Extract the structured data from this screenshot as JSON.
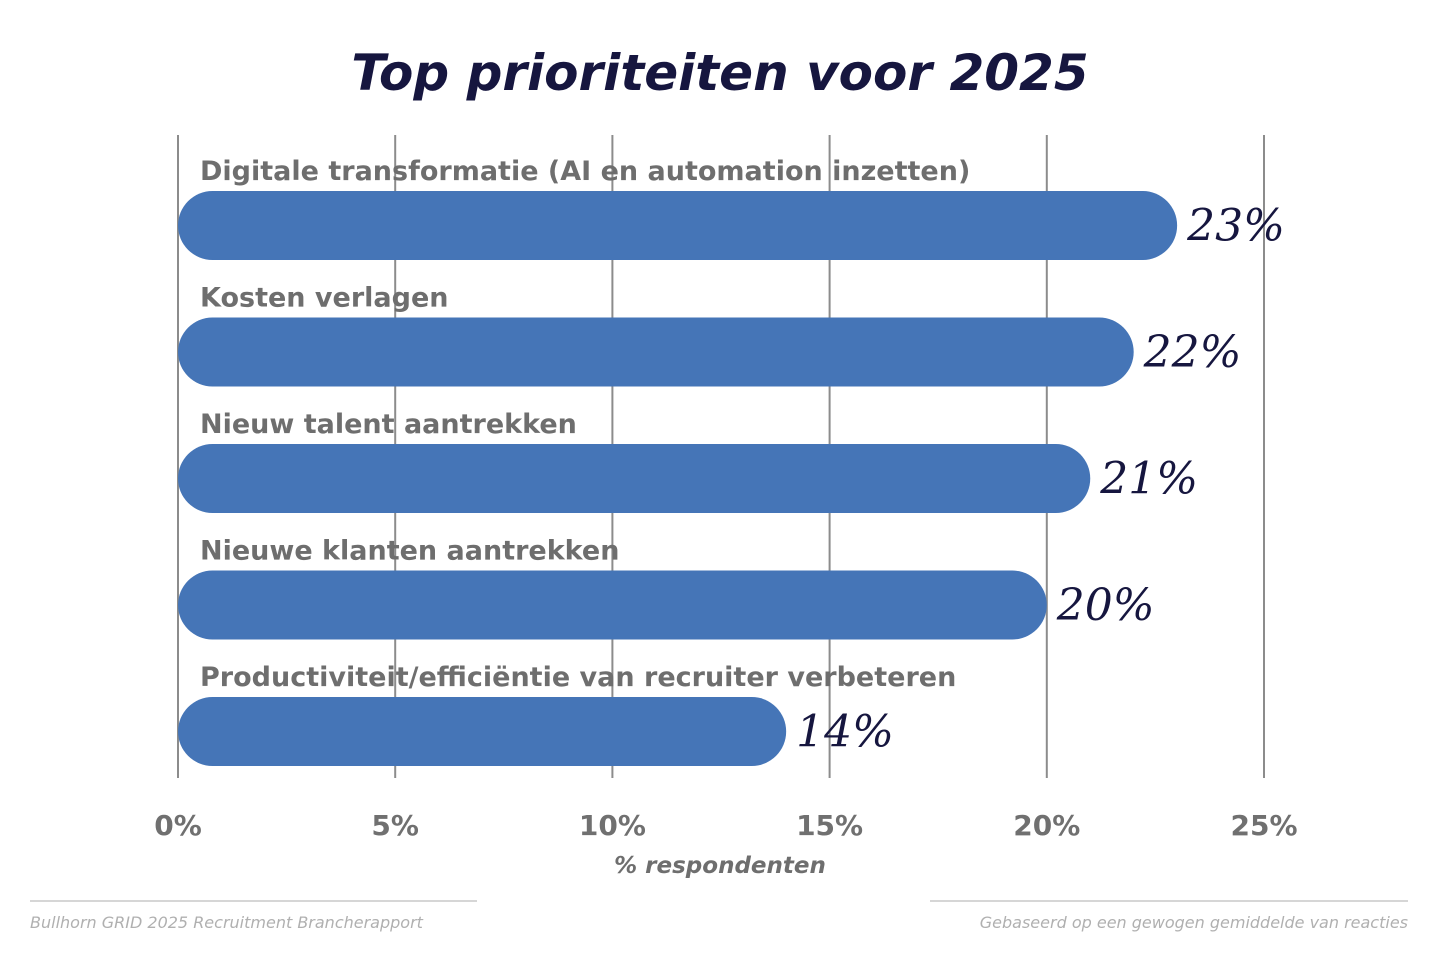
{
  "chart_data": {
    "type": "bar",
    "orientation": "horizontal",
    "title": "Top prioriteiten voor 2025",
    "categories": [
      "Digitale transformatie (AI en automation inzetten)",
      "Kosten verlagen",
      "Nieuw talent aantrekken",
      "Nieuwe klanten aantrekken",
      "Productiviteit/efficiëntie van recruiter verbeteren"
    ],
    "values": [
      23,
      22,
      21,
      20,
      14
    ],
    "value_labels": [
      "23%",
      "22%",
      "21%",
      "20%",
      "14%"
    ],
    "xlabel": "% respondenten",
    "ylabel": "",
    "xlim": [
      0,
      25
    ],
    "ticks": [
      0,
      5,
      10,
      15,
      20,
      25
    ],
    "tick_labels": [
      "0%",
      "5%",
      "10%",
      "15%",
      "20%",
      "25%"
    ],
    "grid": true,
    "bar_color": "#4575b7"
  },
  "footer": {
    "source": "Bullhorn GRID 2025 Recruitment Brancherapport",
    "note": "Gebaseerd op een gewogen gemiddelde van reacties"
  },
  "colors": {
    "title": "#16163f",
    "label": "#6e6e6e",
    "grid": "#8c8c8c"
  }
}
